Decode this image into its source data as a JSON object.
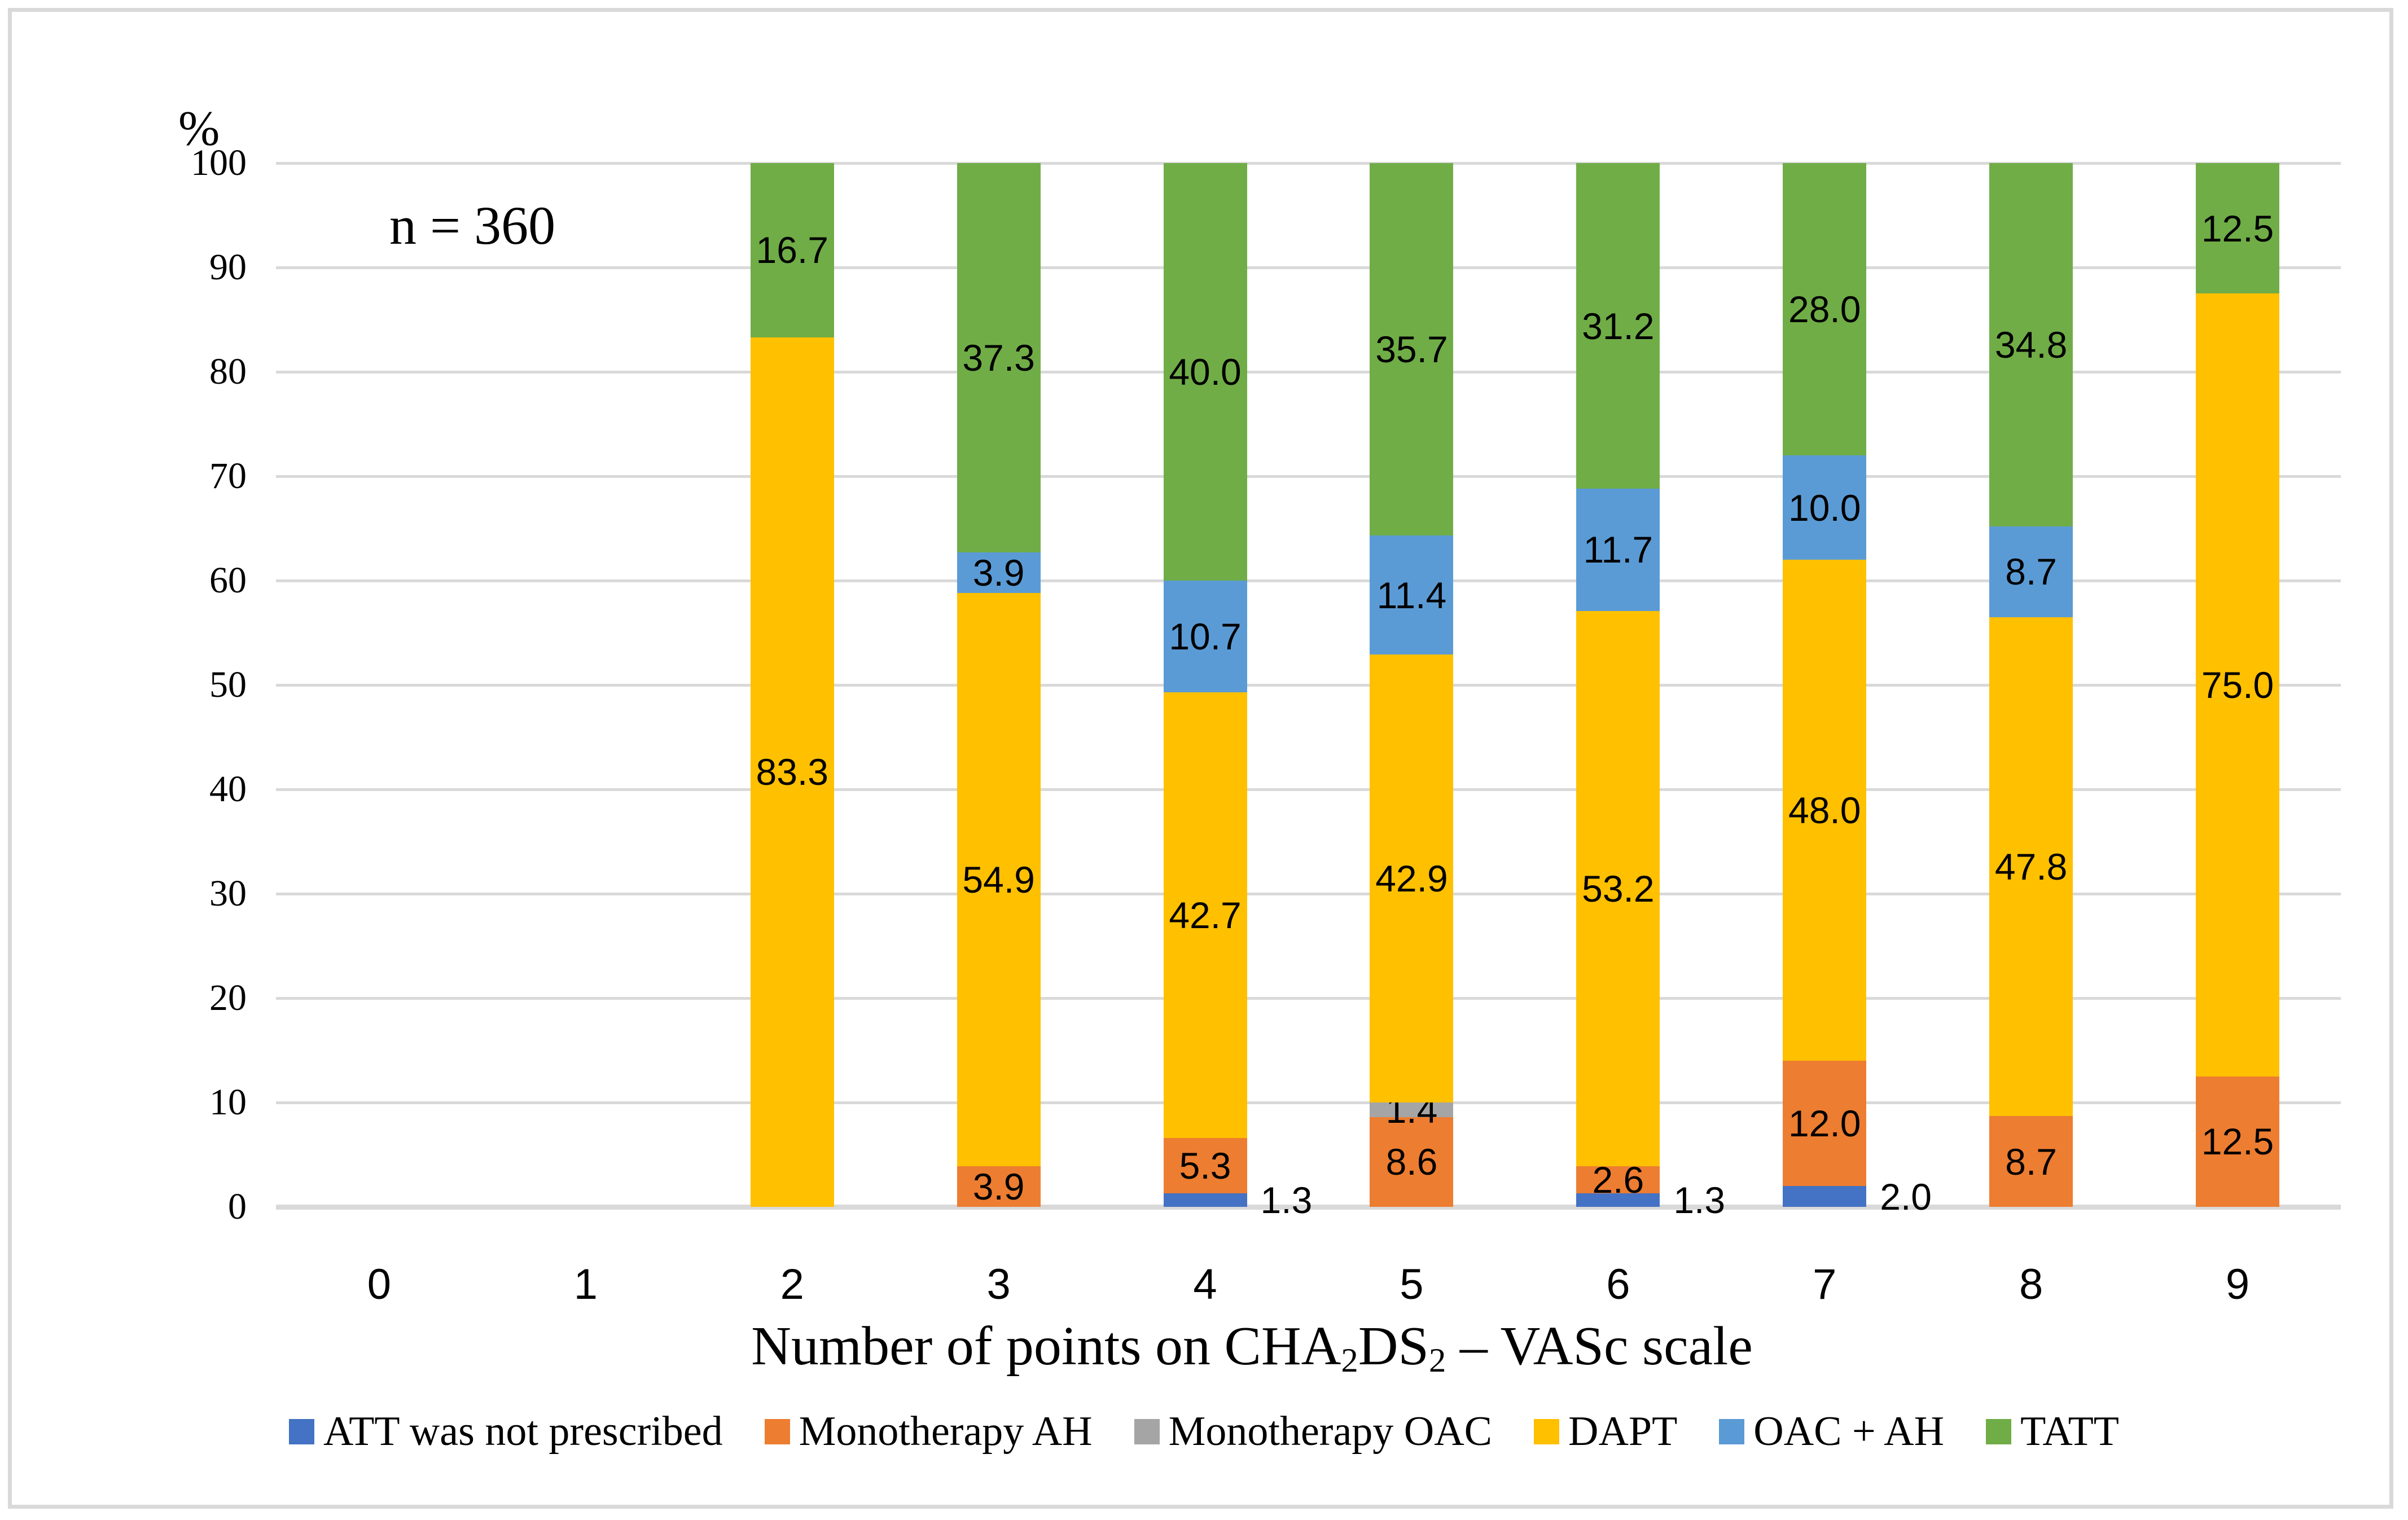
{
  "figure": {
    "background": "#ffffff",
    "border_color": "#D9D9D9",
    "text_color": "#000000"
  },
  "chart_data": {
    "type": "bar",
    "stacked": true,
    "annotation": "n = 360",
    "ylabel": "%",
    "xlabel": "Number of points on CHA2DS2 – VASc scale",
    "xlabel_parts": [
      {
        "text": "Number of points on CHA"
      },
      {
        "text": "2",
        "sub": true
      },
      {
        "text": "DS"
      },
      {
        "text": "2",
        "sub": true
      },
      {
        "text": " – VASc scale"
      }
    ],
    "ylim": [
      0,
      100
    ],
    "yticks": [
      0,
      10,
      20,
      30,
      40,
      50,
      60,
      70,
      80,
      90,
      100
    ],
    "categories": [
      "0",
      "1",
      "2",
      "3",
      "4",
      "5",
      "6",
      "7",
      "8",
      "9"
    ],
    "grid": "horizontal",
    "gridline_color": "#D9D9D9",
    "legend_position": "bottom",
    "value_decimals": 1,
    "series": [
      {
        "name": "ATT was not prescribed",
        "color": "#4472C4",
        "label_outside": true,
        "values": [
          null,
          null,
          null,
          null,
          1.3,
          null,
          1.3,
          2.0,
          null,
          null
        ]
      },
      {
        "name": "Monotherapy AH",
        "color": "#ED7D31",
        "values": [
          null,
          null,
          null,
          3.9,
          5.3,
          8.6,
          2.6,
          12.0,
          8.7,
          12.5
        ]
      },
      {
        "name": "Monotherapy OAC",
        "color": "#A5A5A5",
        "values": [
          null,
          null,
          null,
          null,
          null,
          1.4,
          null,
          null,
          null,
          null
        ]
      },
      {
        "name": "DAPT",
        "color": "#FFC000",
        "values": [
          null,
          null,
          83.3,
          54.9,
          42.7,
          42.9,
          53.2,
          48.0,
          47.8,
          75.0
        ]
      },
      {
        "name": "OAC + AH",
        "color": "#5B9BD5",
        "values": [
          null,
          null,
          null,
          3.9,
          10.7,
          11.4,
          11.7,
          10.0,
          8.7,
          null
        ]
      },
      {
        "name": "TATT",
        "color": "#70AD47",
        "values": [
          null,
          null,
          16.7,
          37.3,
          40.0,
          35.7,
          31.2,
          28.0,
          34.8,
          12.5
        ]
      }
    ]
  }
}
